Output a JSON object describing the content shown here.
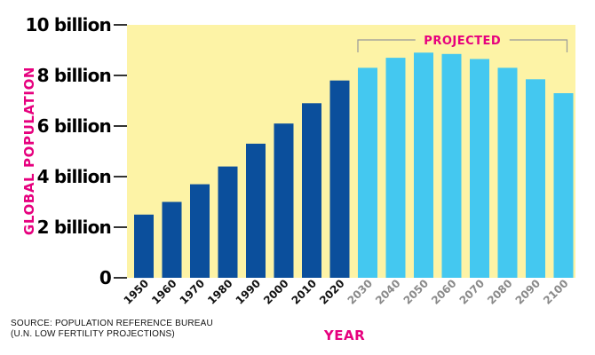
{
  "chart_data": {
    "type": "bar",
    "ylabel": "GLOBAL POPULATION",
    "xlabel": "YEAR",
    "ylim": [
      0,
      10
    ],
    "yticks": [
      {
        "value": 0,
        "label": "0"
      },
      {
        "value": 2,
        "label": "2 billion"
      },
      {
        "value": 4,
        "label": "4 billion"
      },
      {
        "value": 6,
        "label": "6 billion"
      },
      {
        "value": 8,
        "label": "8 billion"
      },
      {
        "value": 10,
        "label": "10 billion"
      }
    ],
    "categories": [
      "1950",
      "1960",
      "1970",
      "1980",
      "1990",
      "2000",
      "2010",
      "2020",
      "2030",
      "2040",
      "2050",
      "2060",
      "2070",
      "2080",
      "2090",
      "2100"
    ],
    "values": [
      2.5,
      3.0,
      3.7,
      4.4,
      5.3,
      6.1,
      6.9,
      7.8,
      8.3,
      8.7,
      8.9,
      8.85,
      8.65,
      8.3,
      7.85,
      7.3
    ],
    "projected_from_index": 8,
    "annotation": "PROJECTED",
    "grid": false,
    "colors": {
      "historical": "#0b4f9c",
      "projected": "#44c8f0",
      "background": "#fdf3a6",
      "accent": "#e6007e",
      "historical_tick": "#111111",
      "projected_tick": "#8a8a8a"
    }
  },
  "source": {
    "line1": "SOURCE: POPULATION REFERENCE BUREAU",
    "line2": "(U.N. LOW FERTILITY PROJECTIONS)"
  }
}
